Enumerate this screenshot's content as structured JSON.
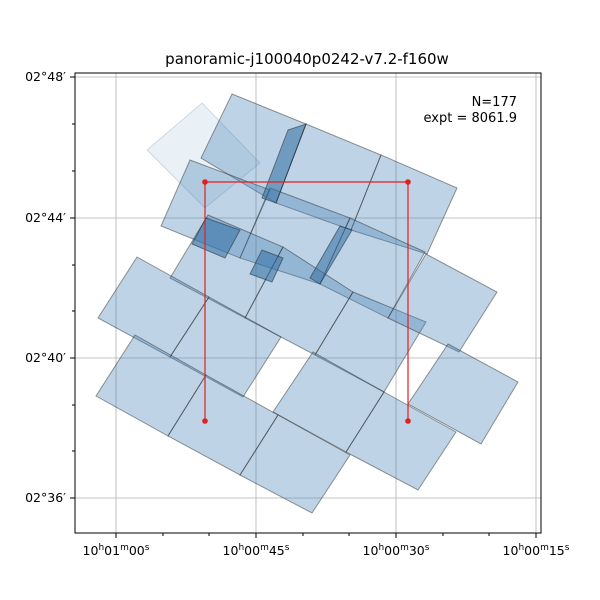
{
  "chart_data": {
    "type": "footprint-map",
    "title": "panoramic-j100040p0242-v7.2-f160w",
    "annotation_lines": [
      "N=177",
      "expt = 8061.9"
    ],
    "x_axis": {
      "ticks": [
        "10h01m00s",
        "10h00m45s",
        "10h00m30s",
        "10h00m15s"
      ]
    },
    "y_axis": {
      "ticks": [
        "02°48′",
        "02°44′",
        "02°40′",
        "02°36′"
      ]
    },
    "grid": true,
    "exposure_count": 177,
    "total_exposure_time": 8061.9,
    "overlay_box_corners": [
      "top-left",
      "top-right",
      "bottom-right",
      "bottom-left"
    ],
    "colors": {
      "footprint": "#4682b4",
      "overlay": "#e02020"
    }
  }
}
